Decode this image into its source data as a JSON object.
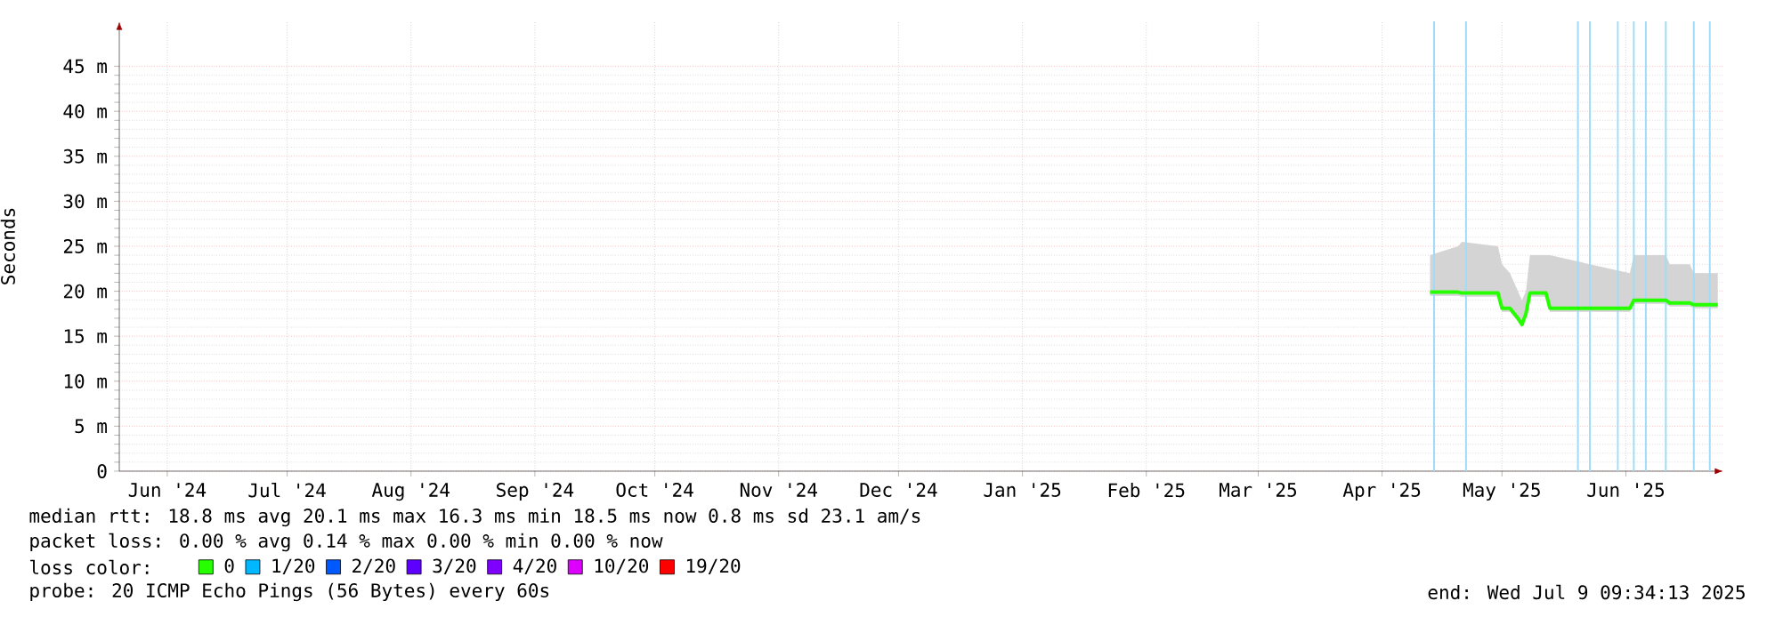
{
  "chart_data": {
    "type": "line",
    "ylabel": "Seconds",
    "xlim": [
      "2024-06-03",
      "2025-07-09T09:34"
    ],
    "xticks": [
      {
        "value": "2024-06-15",
        "label": "Jun '24"
      },
      {
        "value": "2024-07-15",
        "label": "Jul '24"
      },
      {
        "value": "2024-08-15",
        "label": "Aug '24"
      },
      {
        "value": "2024-09-15",
        "label": "Sep '24"
      },
      {
        "value": "2024-10-15",
        "label": "Oct '24"
      },
      {
        "value": "2024-11-15",
        "label": "Nov '24"
      },
      {
        "value": "2024-12-15",
        "label": "Dec '24"
      },
      {
        "value": "2025-01-15",
        "label": "Jan '25"
      },
      {
        "value": "2025-02-15",
        "label": "Feb '25"
      },
      {
        "value": "2025-03-15",
        "label": "Mar '25"
      },
      {
        "value": "2025-04-15",
        "label": "Apr '25"
      },
      {
        "value": "2025-05-15",
        "label": "May '25"
      },
      {
        "value": "2025-06-15",
        "label": "Jun '25"
      }
    ],
    "ylim": [
      0,
      50
    ],
    "yticks": [
      0,
      {
        "value": 5,
        "label": "5 m"
      },
      {
        "value": 10,
        "label": "10 m"
      },
      {
        "value": 15,
        "label": "15 m"
      },
      {
        "value": 20,
        "label": "20 m"
      },
      {
        "value": 25,
        "label": "25 m"
      },
      {
        "value": 30,
        "label": "30 m"
      },
      {
        "value": 35,
        "label": "35 m"
      },
      {
        "value": 40,
        "label": "40 m"
      },
      {
        "value": 45,
        "label": "45 m"
      }
    ],
    "grid": true,
    "legend": "bottom",
    "legend_title": "loss color:",
    "series": [
      {
        "name": "0",
        "color": "#26ff00",
        "x": [
          "2025-04-27",
          "2025-05-04",
          "2025-05-05",
          "2025-05-14",
          "2025-05-15",
          "2025-05-17",
          "2025-05-19",
          "2025-05-20",
          "2025-05-21",
          "2025-05-22",
          "2025-05-26",
          "2025-05-27",
          "2025-06-16",
          "2025-06-17",
          "2025-06-25",
          "2025-06-26",
          "2025-07-01",
          "2025-07-02",
          "2025-07-08"
        ],
        "values": [
          19.9,
          19.9,
          19.8,
          19.8,
          18.1,
          18.1,
          17.0,
          16.3,
          17.5,
          19.8,
          19.8,
          18.1,
          18.1,
          19.0,
          19.0,
          18.7,
          18.7,
          18.5,
          18.5
        ],
        "lower": [
          19.5,
          19.5,
          19.4,
          19.4,
          17.7,
          17.7,
          16.6,
          16.0,
          17.1,
          19.4,
          19.4,
          17.7,
          17.7,
          18.6,
          18.6,
          18.3,
          18.3,
          18.1,
          18.1
        ],
        "upper": [
          24,
          25,
          25.5,
          25,
          23,
          22,
          20,
          19,
          20,
          24,
          24,
          24,
          22,
          24,
          24,
          23,
          23,
          22,
          22
        ]
      },
      {
        "name": "1/20",
        "color": "#00b8ff"
      },
      {
        "name": "2/20",
        "color": "#0059ff"
      },
      {
        "name": "3/20",
        "color": "#5e00ff"
      },
      {
        "name": "4/20",
        "color": "#7e00ff"
      },
      {
        "name": "10/20",
        "color": "#dd00ff"
      },
      {
        "name": "19/20",
        "color": "#ff0000"
      }
    ],
    "ref_lines": [
      {
        "axis": "x",
        "value": "2025-04-28",
        "color": "#a0dcf5"
      },
      {
        "axis": "x",
        "value": "2025-05-06",
        "color": "#a0dcf5"
      },
      {
        "axis": "x",
        "value": "2025-06-03",
        "color": "#a0dcf5"
      },
      {
        "axis": "x",
        "value": "2025-06-06",
        "color": "#a0dcf5"
      },
      {
        "axis": "x",
        "value": "2025-06-13",
        "color": "#a0dcf5"
      },
      {
        "axis": "x",
        "value": "2025-06-17",
        "color": "#a0dcf5"
      },
      {
        "axis": "x",
        "value": "2025-06-20",
        "color": "#a0dcf5"
      },
      {
        "axis": "x",
        "value": "2025-06-25",
        "color": "#a0dcf5"
      },
      {
        "axis": "x",
        "value": "2025-07-02",
        "color": "#a0dcf5"
      },
      {
        "axis": "x",
        "value": "2025-07-06",
        "color": "#a0dcf5"
      }
    ],
    "annotations": [
      "median rtt:  18.8 ms avg  20.1 ms max  16.3 ms min  18.5 ms now  0.8 ms sd  23.1   am/s",
      "packet loss: 0.00 % avg  0.14 % max  0.00 % min  0.00 % now",
      "probe:       20 ICMP Echo Pings (56 Bytes) every 60s",
      "end: Wed Jul  9 09:34:13 2025"
    ]
  }
}
